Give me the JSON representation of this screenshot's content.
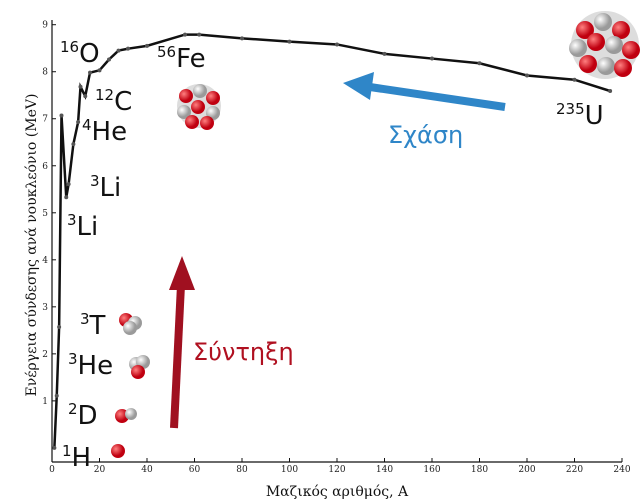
{
  "chart_data": {
    "type": "line",
    "y_label": "Ενέργεια σύνδεσης ανά νουκλεόνιο (MeV)",
    "x_label": "Μαζικός αριθμός, A",
    "xlim": [
      0,
      240
    ],
    "xticks": [
      0,
      20,
      40,
      60,
      80,
      100,
      120,
      140,
      160,
      180,
      200,
      220,
      240
    ],
    "ylim": [
      -0.3,
      9.1
    ],
    "yticks": [
      1,
      2,
      3,
      4,
      5,
      6,
      7,
      8,
      9
    ],
    "series": [
      {
        "color": "#111111",
        "x": [
          1,
          2,
          3,
          4,
          6,
          7,
          9,
          11,
          12,
          14,
          16,
          20,
          24,
          28,
          32,
          40,
          56,
          62,
          80,
          100,
          120,
          140,
          160,
          180,
          200,
          220,
          235
        ],
        "values": [
          0,
          1.11,
          2.57,
          7.07,
          5.33,
          5.61,
          6.46,
          6.93,
          7.68,
          7.48,
          7.98,
          8.03,
          8.26,
          8.45,
          8.49,
          8.55,
          8.79,
          8.79,
          8.71,
          8.64,
          8.58,
          8.38,
          8.28,
          8.18,
          7.92,
          7.83,
          7.59
        ]
      }
    ],
    "isotopes": [
      {
        "mass": "16",
        "symbol": "O"
      },
      {
        "mass": "56",
        "symbol": "Fe",
        "color": "#2a8a2a"
      },
      {
        "mass": "12",
        "symbol": "C"
      },
      {
        "mass": "4",
        "symbol": "He"
      },
      {
        "mass": "3",
        "symbol": "Li"
      },
      {
        "mass": "3",
        "symbol": "Li"
      },
      {
        "mass": "3",
        "symbol": "T"
      },
      {
        "mass": "3",
        "symbol": "He"
      },
      {
        "mass": "2",
        "symbol": "D"
      },
      {
        "mass": "1",
        "symbol": "H"
      },
      {
        "mass": "235",
        "symbol": "U"
      }
    ],
    "annotations": [
      {
        "text": "Σχάση",
        "color": "#2f86c8"
      },
      {
        "text": "Σύντηξη",
        "color": "#b01020"
      }
    ]
  }
}
